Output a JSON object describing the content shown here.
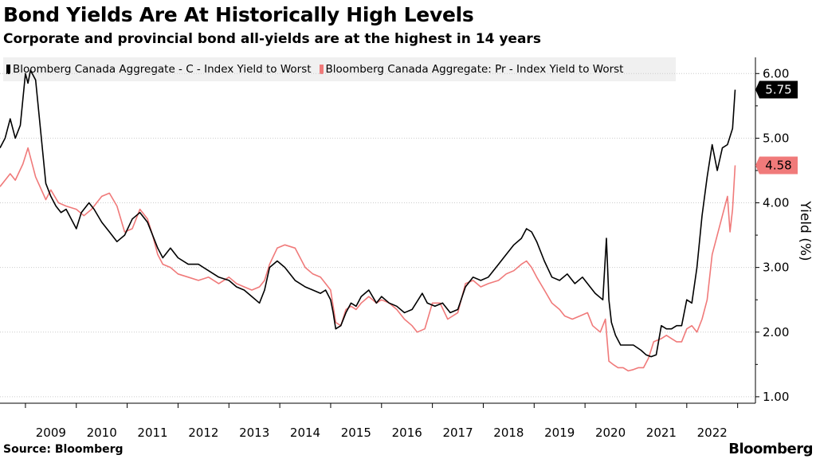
{
  "header": {
    "title": "Bond Yields Are At Historically High Levels",
    "subtitle": "Corporate and provincial bond all-yields are at the highest in 14 years"
  },
  "footer": {
    "source": "Source: Bloomberg",
    "brand": "Bloomberg"
  },
  "colors": {
    "series_corporate": "#000000",
    "series_provincial": "#f07a7a",
    "grid": "#cccccc",
    "legend_bg": "#f0f0f0"
  },
  "chart_data": {
    "type": "line",
    "title": "Bond Yields Are At Historically High Levels",
    "subtitle": "Corporate and provincial bond all-yields are at the highest in 14 years",
    "xlabel": "",
    "ylabel": "Yield (%)",
    "xlim": [
      2008.0,
      2022.85
    ],
    "ylim": [
      0.9,
      6.25
    ],
    "yticks": [
      1.0,
      2.0,
      3.0,
      4.0,
      5.0,
      6.0
    ],
    "ytick_labels": [
      "1.00",
      "2.00",
      "3.00",
      "4.00",
      "5.00",
      "6.00"
    ],
    "xticks": [
      2009,
      2010,
      2011,
      2012,
      2013,
      2014,
      2015,
      2016,
      2017,
      2018,
      2019,
      2020,
      2021,
      2022
    ],
    "xtick_labels": [
      "2009",
      "2010",
      "2011",
      "2012",
      "2013",
      "2014",
      "2015",
      "2016",
      "2017",
      "2018",
      "2019",
      "2020",
      "2021",
      "2022"
    ],
    "grid": true,
    "legend_position": "top-left",
    "series": [
      {
        "name": "Bloomberg Canada Aggregate - C - Index Yield to Worst",
        "end_value": "5.75",
        "x": [
          2008.0,
          2008.1,
          2008.2,
          2008.3,
          2008.4,
          2008.45,
          2008.5,
          2008.55,
          2008.6,
          2008.7,
          2008.8,
          2008.9,
          2009.0,
          2009.1,
          2009.2,
          2009.3,
          2009.5,
          2009.6,
          2009.75,
          2009.85,
          2010.0,
          2010.15,
          2010.3,
          2010.45,
          2010.6,
          2010.75,
          2010.9,
          2011.0,
          2011.1,
          2011.2,
          2011.35,
          2011.5,
          2011.7,
          2011.9,
          2012.1,
          2012.3,
          2012.5,
          2012.65,
          2012.8,
          2012.95,
          2013.1,
          2013.2,
          2013.3,
          2013.45,
          2013.6,
          2013.8,
          2014.0,
          2014.15,
          2014.3,
          2014.4,
          2014.5,
          2014.55,
          2014.6,
          2014.7,
          2014.8,
          2014.9,
          2015.0,
          2015.1,
          2015.25,
          2015.4,
          2015.5,
          2015.65,
          2015.8,
          2015.95,
          2016.1,
          2016.3,
          2016.4,
          2016.55,
          2016.7,
          2016.85,
          2017.0,
          2017.15,
          2017.3,
          2017.45,
          2017.6,
          2017.8,
          2017.95,
          2018.1,
          2018.25,
          2018.35,
          2018.45,
          2018.55,
          2018.7,
          2018.85,
          2019.0,
          2019.15,
          2019.3,
          2019.45,
          2019.6,
          2019.7,
          2019.85,
          2019.92,
          2019.97,
          2020.02,
          2020.1,
          2020.2,
          2020.3,
          2020.45,
          2020.6,
          2020.7,
          2020.8,
          2020.9,
          2021.0,
          2021.1,
          2021.2,
          2021.3,
          2021.4,
          2021.5,
          2021.6,
          2021.7,
          2021.8,
          2021.9,
          2022.0,
          2022.1,
          2022.2,
          2022.3,
          2022.4,
          2022.45
        ],
        "y": [
          4.85,
          5.0,
          5.3,
          5.0,
          5.2,
          5.6,
          6.0,
          5.85,
          6.05,
          5.9,
          5.1,
          4.3,
          4.1,
          3.95,
          3.85,
          3.9,
          3.6,
          3.85,
          4.0,
          3.9,
          3.7,
          3.55,
          3.4,
          3.5,
          3.75,
          3.85,
          3.7,
          3.5,
          3.3,
          3.15,
          3.3,
          3.15,
          3.05,
          3.05,
          2.95,
          2.85,
          2.8,
          2.7,
          2.65,
          2.55,
          2.45,
          2.65,
          3.0,
          3.1,
          3.0,
          2.8,
          2.7,
          2.65,
          2.6,
          2.65,
          2.5,
          2.3,
          2.05,
          2.1,
          2.3,
          2.45,
          2.4,
          2.55,
          2.65,
          2.45,
          2.55,
          2.45,
          2.4,
          2.3,
          2.35,
          2.6,
          2.45,
          2.4,
          2.45,
          2.3,
          2.35,
          2.7,
          2.85,
          2.8,
          2.85,
          3.05,
          3.2,
          3.35,
          3.45,
          3.6,
          3.55,
          3.4,
          3.1,
          2.85,
          2.8,
          2.9,
          2.75,
          2.85,
          2.7,
          2.6,
          2.5,
          3.45,
          2.5,
          2.15,
          1.95,
          1.8,
          1.8,
          1.8,
          1.72,
          1.65,
          1.62,
          1.65,
          2.1,
          2.05,
          2.05,
          2.1,
          2.1,
          2.5,
          2.45,
          3.0,
          3.8,
          4.4,
          4.9,
          4.5,
          4.85,
          4.9,
          5.15,
          5.75
        ]
      },
      {
        "name": "Bloomberg Canada Aggregate: Pr - Index Yield to Worst",
        "end_value": "4.58",
        "x": [
          2008.0,
          2008.1,
          2008.2,
          2008.3,
          2008.45,
          2008.55,
          2008.7,
          2008.9,
          2009.0,
          2009.15,
          2009.3,
          2009.5,
          2009.65,
          2009.8,
          2010.0,
          2010.15,
          2010.3,
          2010.45,
          2010.6,
          2010.75,
          2010.9,
          2011.0,
          2011.1,
          2011.2,
          2011.35,
          2011.5,
          2011.7,
          2011.9,
          2012.1,
          2012.3,
          2012.5,
          2012.65,
          2012.8,
          2012.95,
          2013.1,
          2013.2,
          2013.3,
          2013.45,
          2013.6,
          2013.8,
          2014.0,
          2014.15,
          2014.3,
          2014.4,
          2014.5,
          2014.55,
          2014.6,
          2014.7,
          2014.8,
          2014.9,
          2015.0,
          2015.1,
          2015.25,
          2015.4,
          2015.5,
          2015.65,
          2015.8,
          2015.95,
          2016.1,
          2016.2,
          2016.35,
          2016.5,
          2016.65,
          2016.8,
          2017.0,
          2017.15,
          2017.3,
          2017.45,
          2017.6,
          2017.8,
          2017.95,
          2018.1,
          2018.25,
          2018.35,
          2018.45,
          2018.55,
          2018.7,
          2018.85,
          2019.0,
          2019.1,
          2019.25,
          2019.4,
          2019.55,
          2019.65,
          2019.8,
          2019.9,
          2019.97,
          2020.05,
          2020.15,
          2020.25,
          2020.35,
          2020.45,
          2020.55,
          2020.65,
          2020.75,
          2020.85,
          2021.0,
          2021.1,
          2021.2,
          2021.3,
          2021.4,
          2021.5,
          2021.6,
          2021.7,
          2021.8,
          2021.9,
          2022.0,
          2022.1,
          2022.2,
          2022.3,
          2022.35,
          2022.4,
          2022.45
        ],
        "y": [
          4.25,
          4.35,
          4.45,
          4.35,
          4.6,
          4.85,
          4.4,
          4.05,
          4.2,
          4.0,
          3.95,
          3.9,
          3.8,
          3.9,
          4.1,
          4.15,
          3.95,
          3.55,
          3.6,
          3.9,
          3.75,
          3.5,
          3.2,
          3.05,
          3.0,
          2.9,
          2.85,
          2.8,
          2.85,
          2.75,
          2.85,
          2.75,
          2.7,
          2.65,
          2.7,
          2.8,
          3.05,
          3.3,
          3.35,
          3.3,
          3.0,
          2.9,
          2.85,
          2.75,
          2.65,
          2.4,
          2.15,
          2.1,
          2.35,
          2.4,
          2.35,
          2.45,
          2.55,
          2.45,
          2.5,
          2.45,
          2.35,
          2.2,
          2.1,
          2.0,
          2.05,
          2.45,
          2.45,
          2.2,
          2.3,
          2.75,
          2.8,
          2.7,
          2.75,
          2.8,
          2.9,
          2.95,
          3.05,
          3.1,
          3.0,
          2.85,
          2.65,
          2.45,
          2.35,
          2.25,
          2.2,
          2.25,
          2.3,
          2.1,
          2.0,
          2.2,
          1.55,
          1.5,
          1.45,
          1.45,
          1.4,
          1.42,
          1.45,
          1.45,
          1.6,
          1.85,
          1.9,
          1.95,
          1.9,
          1.85,
          1.85,
          2.05,
          2.1,
          2.0,
          2.2,
          2.5,
          3.2,
          3.5,
          3.8,
          4.1,
          3.55,
          3.9,
          4.58
        ]
      }
    ]
  }
}
